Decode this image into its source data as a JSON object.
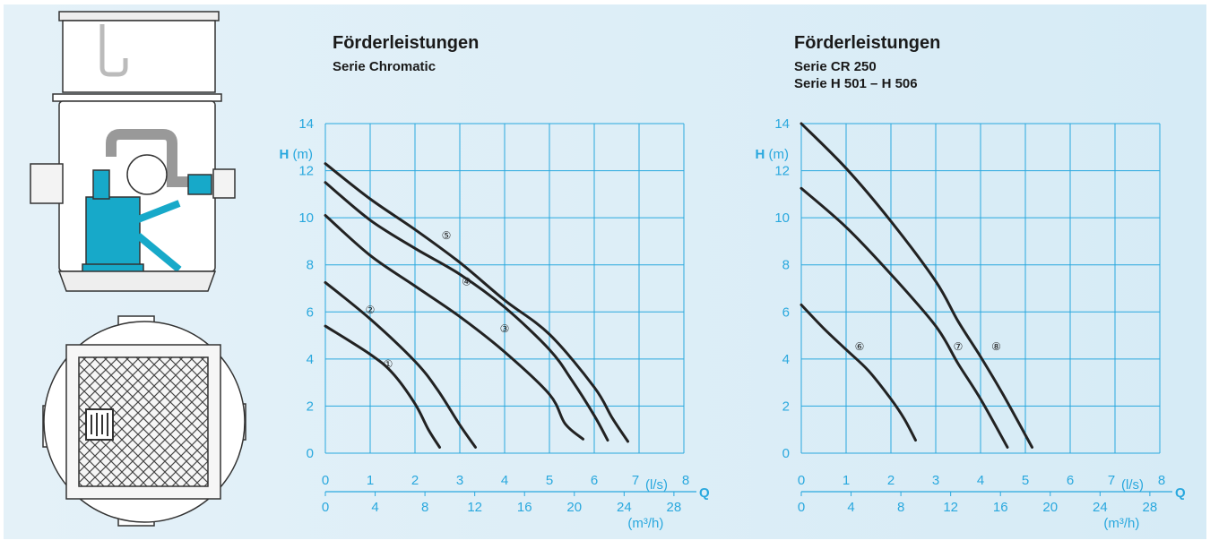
{
  "chart_data": [
    {
      "type": "line",
      "title": "Förderleistungen",
      "subtitle": [
        "Serie Chromatic"
      ],
      "ylabel": "H",
      "ylabel_unit": "(m)",
      "xlabel": "Q",
      "x_unit": "(l/s)",
      "x2_unit": "(m³/h)",
      "xlim": [
        0,
        8
      ],
      "ylim": [
        0,
        14
      ],
      "grid": true,
      "y_ticks": [
        "0",
        "2",
        "4",
        "6",
        "8",
        "10",
        "12",
        "14"
      ],
      "x_ticks": [
        "0",
        "1",
        "2",
        "3",
        "4",
        "5",
        "6",
        "7",
        "8"
      ],
      "x2_ticks": [
        "0",
        "4",
        "8",
        "12",
        "16",
        "20",
        "24",
        "28"
      ],
      "series": [
        {
          "name": "①",
          "label_at": [
            1.4,
            3.9
          ],
          "points": [
            [
              0,
              5.4
            ],
            [
              1,
              4.2
            ],
            [
              1.5,
              3.4
            ],
            [
              2,
              2.1
            ],
            [
              2.3,
              1.0
            ],
            [
              2.55,
              0.25
            ]
          ]
        },
        {
          "name": "②",
          "label_at": [
            1.0,
            6.2
          ],
          "points": [
            [
              0,
              7.25
            ],
            [
              1,
              5.7
            ],
            [
              2,
              3.9
            ],
            [
              2.5,
              2.7
            ],
            [
              3,
              1.2
            ],
            [
              3.35,
              0.25
            ]
          ]
        },
        {
          "name": "③",
          "label_at": [
            4.0,
            5.4
          ],
          "points": [
            [
              0,
              10.1
            ],
            [
              1,
              8.4
            ],
            [
              2,
              7.1
            ],
            [
              3,
              5.8
            ],
            [
              4,
              4.3
            ],
            [
              5,
              2.5
            ],
            [
              5.35,
              1.25
            ],
            [
              5.75,
              0.6
            ]
          ]
        },
        {
          "name": "④",
          "label_at": [
            3.15,
            7.4
          ],
          "points": [
            [
              0,
              11.5
            ],
            [
              1,
              9.9
            ],
            [
              2,
              8.7
            ],
            [
              3,
              7.6
            ],
            [
              4,
              6.2
            ],
            [
              5,
              4.4
            ],
            [
              5.5,
              3.1
            ],
            [
              6,
              1.6
            ],
            [
              6.3,
              0.55
            ]
          ]
        },
        {
          "name": "⑤",
          "label_at": [
            2.7,
            9.35
          ],
          "points": [
            [
              0,
              12.3
            ],
            [
              1,
              10.8
            ],
            [
              2,
              9.5
            ],
            [
              3,
              8.1
            ],
            [
              4,
              6.5
            ],
            [
              5,
              5.05
            ],
            [
              6,
              2.8
            ],
            [
              6.4,
              1.5
            ],
            [
              6.75,
              0.5
            ]
          ]
        }
      ]
    },
    {
      "type": "line",
      "title": "Förderleistungen",
      "subtitle": [
        "Serie CR 250",
        "Serie H 501 – H 506"
      ],
      "ylabel": "H",
      "ylabel_unit": "(m)",
      "xlabel": "Q",
      "x_unit": "(l/s)",
      "x2_unit": "(m³/h)",
      "xlim": [
        0,
        8
      ],
      "ylim": [
        0,
        14
      ],
      "grid": true,
      "y_ticks": [
        "0",
        "2",
        "4",
        "6",
        "8",
        "10",
        "12",
        "14"
      ],
      "x_ticks": [
        "0",
        "1",
        "2",
        "3",
        "4",
        "5",
        "6",
        "7",
        "8"
      ],
      "x2_ticks": [
        "0",
        "4",
        "8",
        "12",
        "16",
        "20",
        "24",
        "28"
      ],
      "series": [
        {
          "name": "⑥",
          "label_at": [
            1.3,
            4.65
          ],
          "points": [
            [
              0,
              6.3
            ],
            [
              0.5,
              5.3
            ],
            [
              1,
              4.4
            ],
            [
              1.5,
              3.5
            ],
            [
              2,
              2.3
            ],
            [
              2.3,
              1.45
            ],
            [
              2.55,
              0.55
            ]
          ]
        },
        {
          "name": "⑦",
          "label_at": [
            3.5,
            4.65
          ],
          "points": [
            [
              0,
              11.25
            ],
            [
              1,
              9.6
            ],
            [
              2,
              7.6
            ],
            [
              3,
              5.4
            ],
            [
              3.5,
              3.8
            ],
            [
              4,
              2.3
            ],
            [
              4.6,
              0.25
            ]
          ]
        },
        {
          "name": "⑧",
          "label_at": [
            4.35,
            4.65
          ],
          "points": [
            [
              0,
              14.0
            ],
            [
              1,
              12.1
            ],
            [
              2,
              9.85
            ],
            [
              3,
              7.3
            ],
            [
              3.5,
              5.6
            ],
            [
              4,
              4.1
            ],
            [
              4.5,
              2.5
            ],
            [
              5.15,
              0.25
            ]
          ]
        }
      ]
    }
  ]
}
